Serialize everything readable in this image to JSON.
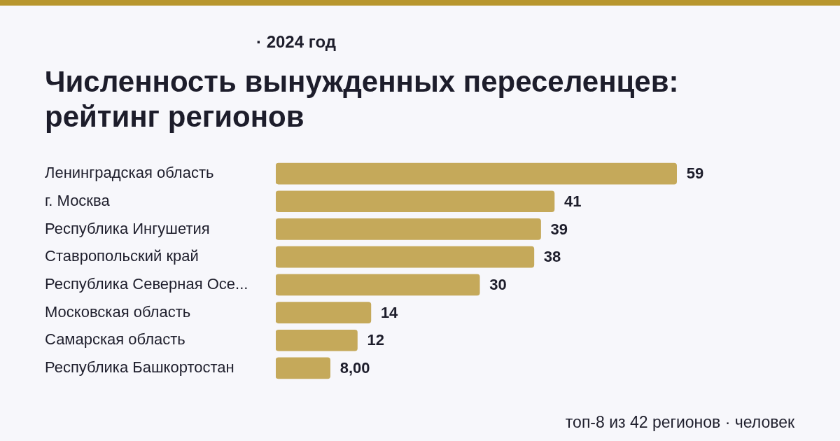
{
  "chart_data": {
    "type": "bar",
    "orientation": "horizontal",
    "subtitle": "· 2024 год",
    "title": "Численность вынужденных переселенцев: рейтинг регионов",
    "categories": [
      "Ленинградская область",
      "г. Москва",
      "Республика Ингушетия",
      "Ставропольский край",
      "Республика Северная Осе...",
      "Московская область",
      "Самарская область",
      "Республика Башкортостан"
    ],
    "values": [
      59,
      41,
      39,
      38,
      30,
      14,
      12,
      8
    ],
    "value_labels": [
      "59",
      "41",
      "39",
      "38",
      "30",
      "14",
      "12",
      "8,00"
    ],
    "color": "#c5a95a",
    "annotations": [
      "топ-8 из 42 регионов · человек"
    ]
  }
}
